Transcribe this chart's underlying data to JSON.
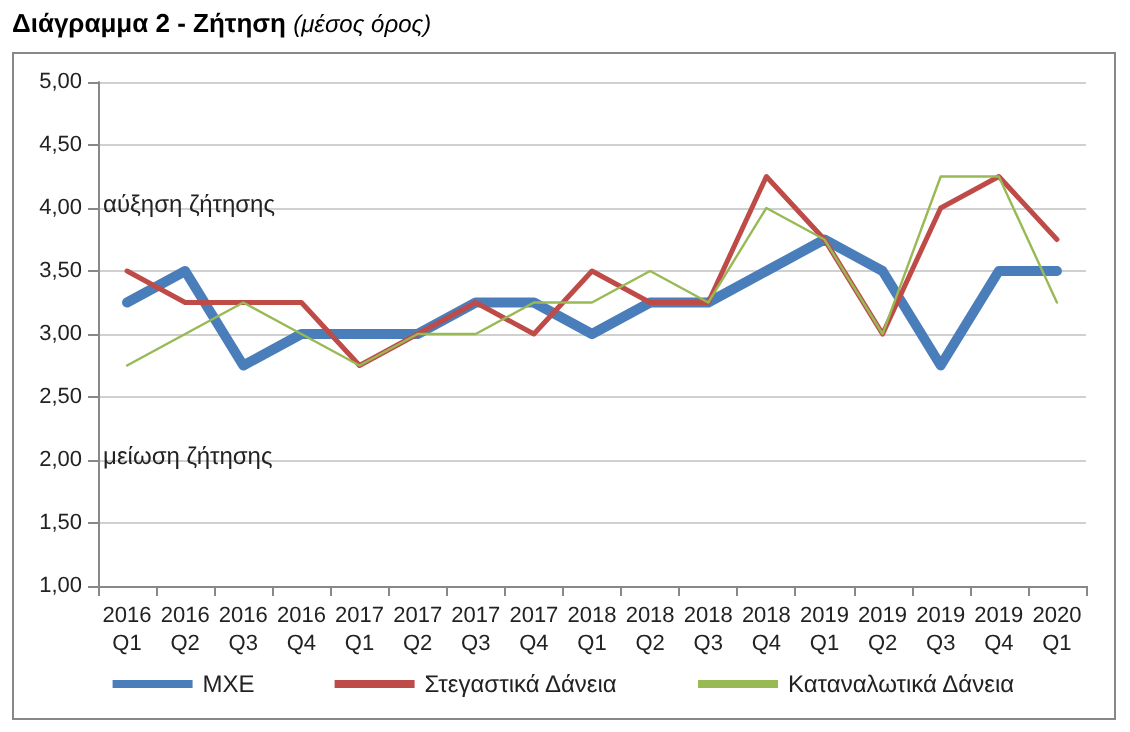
{
  "chart_data": {
    "type": "line",
    "title": "Διάγραμμα 2 - Ζήτηση",
    "subtitle": "(μέσος όρος)",
    "categories": [
      "2016\nQ1",
      "2016\nQ2",
      "2016\nQ3",
      "2016\nQ4",
      "2017\nQ1",
      "2017\nQ2",
      "2017\nQ3",
      "2017\nQ4",
      "2018\nQ1",
      "2018\nQ2",
      "2018\nQ3",
      "2018\nQ4",
      "2019\nQ1",
      "2019\nQ2",
      "2019\nQ3",
      "2019\nQ4",
      "2020\nQ1"
    ],
    "series": [
      {
        "name": "ΜΧΕ",
        "color": "#4a7ebb",
        "values": [
          3.25,
          3.5,
          2.75,
          3,
          3,
          3,
          3.25,
          3.25,
          3,
          3.25,
          3.25,
          3.5,
          3.75,
          3.5,
          2.75,
          3.5,
          3.5
        ]
      },
      {
        "name": "Στεγαστικά Δάνεια",
        "color": "#be4b48",
        "values": [
          3.5,
          3.25,
          3.25,
          3.25,
          2.75,
          3,
          3.25,
          3,
          3.5,
          3.25,
          3.25,
          4.25,
          3.75,
          3,
          4,
          4.25,
          3.75
        ]
      },
      {
        "name": "Καταναλωτικά Δάνεια",
        "color": "#98b954",
        "values": [
          2.75,
          3,
          3.25,
          3,
          2.75,
          3,
          3,
          3.25,
          3.25,
          3.5,
          3.25,
          4,
          3.75,
          3,
          4.25,
          4.25,
          3.25
        ]
      }
    ],
    "ylim": [
      1,
      5
    ],
    "yticks": [
      {
        "value": 1,
        "label": "1,00"
      },
      {
        "value": 1.5,
        "label": "1,50"
      },
      {
        "value": 2,
        "label": "2,00"
      },
      {
        "value": 2.5,
        "label": "2,50"
      },
      {
        "value": 3,
        "label": "3,00"
      },
      {
        "value": 3.5,
        "label": "3,50"
      },
      {
        "value": 4,
        "label": "4,00"
      },
      {
        "value": 4.5,
        "label": "4,50"
      },
      {
        "value": 5,
        "label": "5,00"
      }
    ],
    "annotations": [
      "αύξηση ζήτησης",
      "μείωση ζήτησης"
    ],
    "grid": "y",
    "legend": "bottom",
    "marker": "none",
    "line_style": "solid"
  }
}
